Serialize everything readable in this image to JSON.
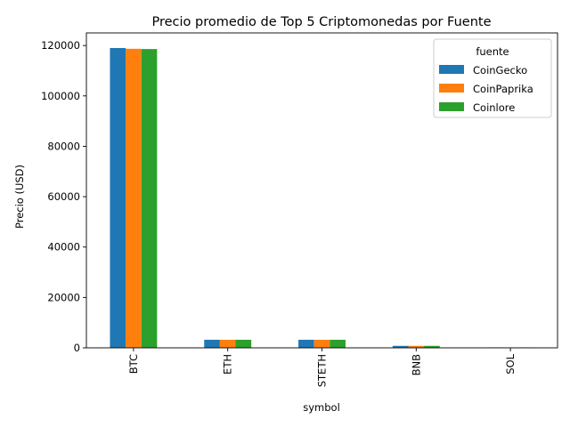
{
  "chart_data": {
    "type": "bar",
    "title": "Precio promedio de Top 5 Criptomonedas por Fuente",
    "xlabel": "symbol",
    "ylabel": "Precio (USD)",
    "categories": [
      "BTC",
      "ETH",
      "STETH",
      "BNB",
      "SOL"
    ],
    "series": [
      {
        "name": "CoinGecko",
        "color": "#1f77b4",
        "values": [
          119000,
          3200,
          3200,
          780,
          180
        ]
      },
      {
        "name": "CoinPaprika",
        "color": "#ff7f0e",
        "values": [
          118700,
          3200,
          3200,
          780,
          180
        ]
      },
      {
        "name": "Coinlore",
        "color": "#2ca02c",
        "values": [
          118600,
          3200,
          3200,
          780,
          180
        ]
      }
    ],
    "ylim": [
      0,
      125000
    ],
    "yticks": [
      "0",
      "20000",
      "40000",
      "60000",
      "80000",
      "100000",
      "120000"
    ],
    "grid": false,
    "legend": {
      "title": "fuente",
      "position": "top-right"
    }
  }
}
